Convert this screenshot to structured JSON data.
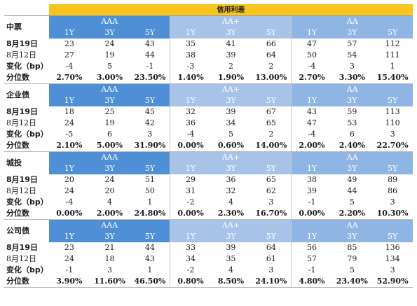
{
  "title": "信用利差",
  "groups": [
    "AAA",
    "AA+",
    "AA"
  ],
  "tenors": [
    "1Y",
    "3Y",
    "5Y"
  ],
  "row_labels": {
    "current": "8月19日",
    "previous": "8月12日",
    "change": "变化（bp）",
    "percentile": "分位数"
  },
  "sections": [
    {
      "name": "中票",
      "current": [
        "23",
        "24",
        "43",
        "35",
        "41",
        "66",
        "47",
        "57",
        "112"
      ],
      "previous": [
        "27",
        "19",
        "44",
        "38",
        "39",
        "64",
        "50",
        "54",
        "111"
      ],
      "change": [
        "-4",
        "5",
        "-1",
        "-3",
        "2",
        "2",
        "-4",
        "3",
        "1"
      ],
      "percentile": [
        "2.70%",
        "3.00%",
        "23.50%",
        "1.40%",
        "1.90%",
        "13.00%",
        "2.70%",
        "3.30%",
        "15.40%"
      ]
    },
    {
      "name": "企业债",
      "current": [
        "18",
        "25",
        "45",
        "32",
        "39",
        "67",
        "43",
        "59",
        "113"
      ],
      "previous": [
        "24",
        "19",
        "42",
        "36",
        "34",
        "65",
        "47",
        "53",
        "110"
      ],
      "change": [
        "-5",
        "6",
        "3",
        "-4",
        "5",
        "2",
        "-4",
        "6",
        "3"
      ],
      "percentile": [
        "2.10%",
        "5.00%",
        "31.90%",
        "0.00%",
        "0.60%",
        "14.00%",
        "2.00%",
        "2.40%",
        "22.70%"
      ]
    },
    {
      "name": "城投",
      "current": [
        "20",
        "24",
        "51",
        "29",
        "36",
        "65",
        "38",
        "49",
        "89"
      ],
      "previous": [
        "24",
        "20",
        "50",
        "31",
        "32",
        "62",
        "39",
        "44",
        "86"
      ],
      "change": [
        "-4",
        "4",
        "1",
        "-2",
        "4",
        "3",
        "-1",
        "5",
        "3"
      ],
      "percentile": [
        "0.00%",
        "2.00%",
        "24.80%",
        "0.00%",
        "2.30%",
        "16.70%",
        "0.00%",
        "2.20%",
        "10.30%"
      ]
    },
    {
      "name": "公司债",
      "current": [
        "23",
        "21",
        "44",
        "33",
        "39",
        "64",
        "56",
        "85",
        "136"
      ],
      "previous": [
        "24",
        "18",
        "43",
        "34",
        "35",
        "61",
        "57",
        "79",
        "134"
      ],
      "change": [
        "-1",
        "3",
        "1",
        "-2",
        "4",
        "3",
        "-1",
        "5",
        "3"
      ],
      "percentile": [
        "3.90%",
        "11.60%",
        "46.50%",
        "0.80%",
        "8.50%",
        "24.10%",
        "4.80%",
        "23.40%",
        "52.90%"
      ]
    }
  ]
}
